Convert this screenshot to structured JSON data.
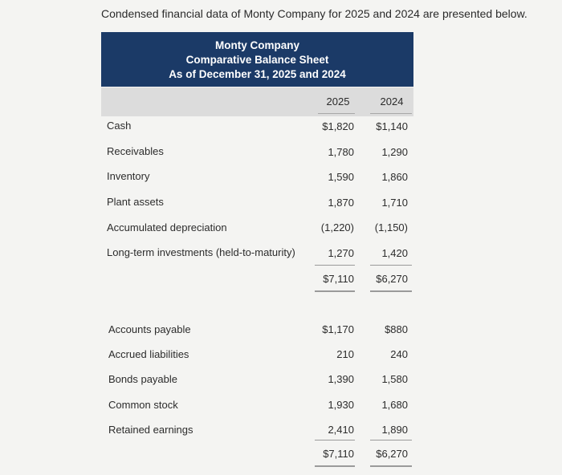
{
  "intro": "Condensed financial data of Monty Company for 2025 and 2024 are presented below.",
  "header": {
    "company": "Monty Company",
    "statement": "Comparative Balance Sheet",
    "date": "As of December 31, 2025 and 2024"
  },
  "columns": [
    "2025",
    "2024"
  ],
  "assets": [
    {
      "label": "Cash",
      "y2025": "$1,820",
      "y2024": "$1,140"
    },
    {
      "label": "Receivables",
      "y2025": "1,780",
      "y2024": "1,290"
    },
    {
      "label": "Inventory",
      "y2025": "1,590",
      "y2024": "1,860"
    },
    {
      "label": "Plant assets",
      "y2025": "1,870",
      "y2024": "1,710"
    },
    {
      "label": "Accumulated depreciation",
      "y2025": "(1,220)",
      "y2024": "(1,150)"
    },
    {
      "label": "Long-term investments (held-to-maturity)",
      "y2025": "1,270",
      "y2024": "1,420"
    }
  ],
  "assets_total": {
    "y2025": "$7,110",
    "y2024": "$6,270"
  },
  "liabilities": [
    {
      "label": "Accounts payable",
      "y2025": "$1,170",
      "y2024": "$880"
    },
    {
      "label": "Accrued liabilities",
      "y2025": "210",
      "y2024": "240"
    },
    {
      "label": "Bonds payable",
      "y2025": "1,390",
      "y2024": "1,580"
    },
    {
      "label": "Common stock",
      "y2025": "1,930",
      "y2024": "1,680"
    },
    {
      "label": "Retained earnings",
      "y2025": "2,410",
      "y2024": "1,890"
    }
  ],
  "liabilities_total": {
    "y2025": "$7,110",
    "y2024": "$6,270"
  }
}
